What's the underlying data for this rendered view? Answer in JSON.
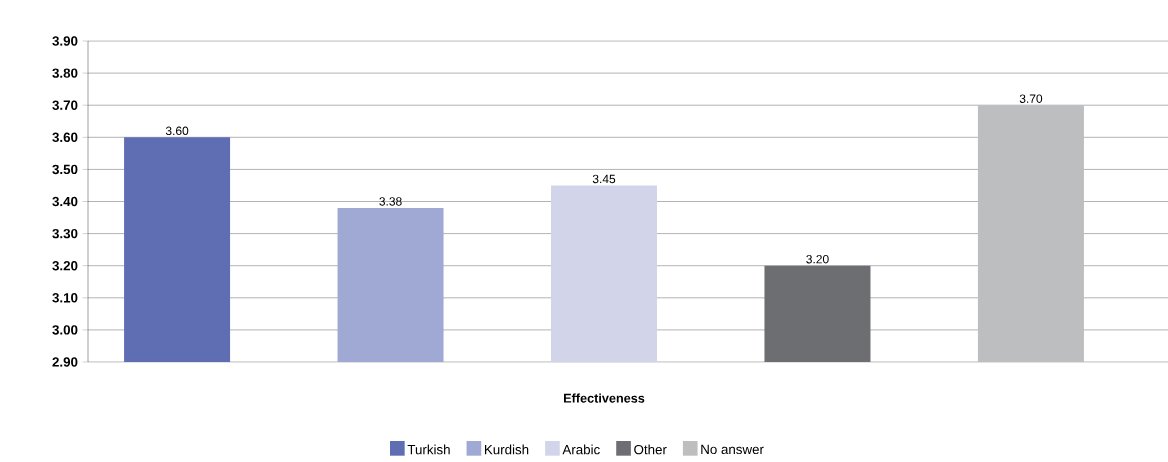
{
  "chart_data": {
    "type": "bar",
    "categories": [
      "Effectiveness"
    ],
    "series": [
      {
        "name": "Turkish",
        "color": "#5f6db3",
        "values": [
          3.6
        ],
        "value_labels": [
          "3.60"
        ]
      },
      {
        "name": "Kurdish",
        "color": "#a0a8d4",
        "values": [
          3.38
        ],
        "value_labels": [
          "3.38"
        ]
      },
      {
        "name": "Arabic",
        "color": "#d2d5ea",
        "values": [
          3.45
        ],
        "value_labels": [
          "3.45"
        ]
      },
      {
        "name": "Other",
        "color": "#6d6e71",
        "values": [
          3.2
        ],
        "value_labels": [
          "3.20"
        ]
      },
      {
        "name": "No answer",
        "color": "#bdbec0",
        "values": [
          3.7
        ],
        "value_labels": [
          "3.70"
        ]
      }
    ],
    "ylim": [
      2.9,
      3.9
    ],
    "yticks": [
      {
        "value": 2.9,
        "label": "2.90"
      },
      {
        "value": 3.0,
        "label": "3.00"
      },
      {
        "value": 3.1,
        "label": "3.10"
      },
      {
        "value": 3.2,
        "label": "3.20"
      },
      {
        "value": 3.3,
        "label": "3.30"
      },
      {
        "value": 3.4,
        "label": "3.40"
      },
      {
        "value": 3.5,
        "label": "3.50"
      },
      {
        "value": 3.6,
        "label": "3.60"
      },
      {
        "value": 3.7,
        "label": "3.70"
      },
      {
        "value": 3.8,
        "label": "3.80"
      },
      {
        "value": 3.9,
        "label": "3.90"
      }
    ],
    "grid": "y",
    "legend": "bottom"
  }
}
